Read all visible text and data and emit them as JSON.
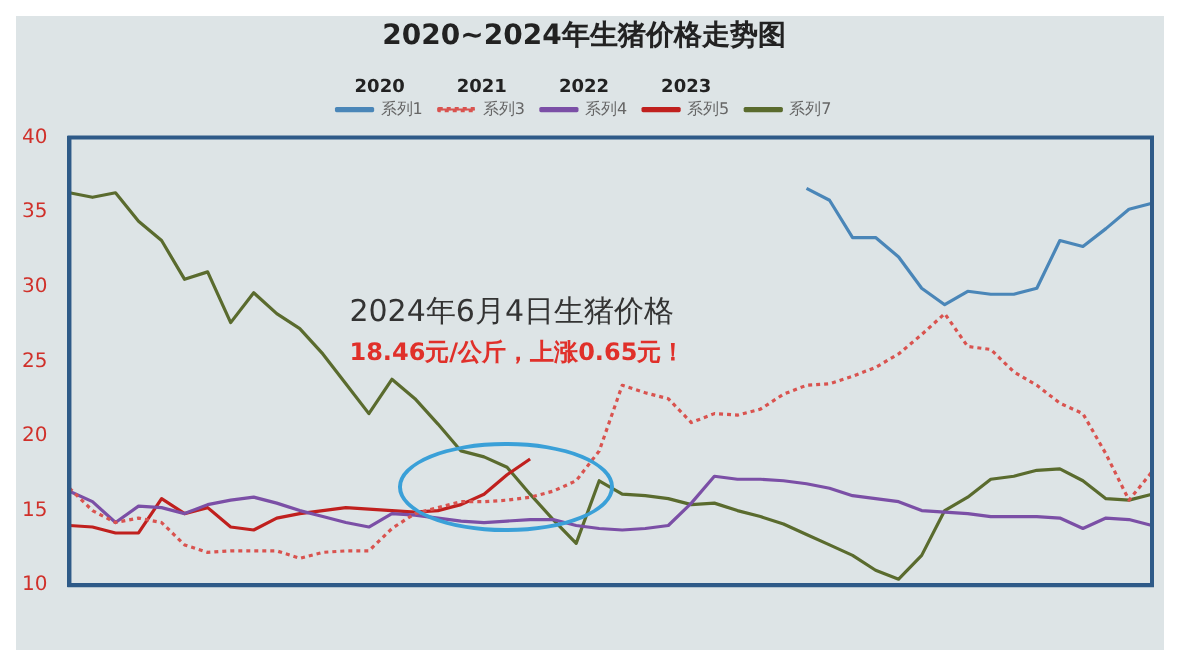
{
  "chart_data": {
    "type": "line",
    "title": "2020~2024年生猪价格走势图",
    "categories": [
      null,
      null,
      null,
      null,
      null,
      null,
      null,
      null,
      null,
      null,
      null,
      null,
      null,
      null,
      null,
      null,
      null,
      null,
      null,
      null,
      null,
      null,
      null,
      null,
      null,
      null,
      null,
      null,
      null,
      null,
      null,
      null,
      null,
      null,
      null,
      null,
      null,
      null,
      null,
      null,
      null,
      null,
      null,
      null,
      null,
      null,
      null,
      null
    ],
    "series": [
      {
        "name": "系列1",
        "color": "#4a86b8",
        "values": [
          null,
          null,
          null,
          null,
          null,
          null,
          null,
          null,
          null,
          null,
          null,
          null,
          null,
          null,
          null,
          null,
          null,
          null,
          null,
          null,
          null,
          null,
          null,
          null,
          null,
          null,
          null,
          null,
          null,
          null,
          null,
          null,
          36.6,
          35.8,
          33.3,
          33.3,
          32.0,
          29.9,
          28.8,
          29.7,
          29.5,
          29.5,
          29.9,
          33.1,
          32.7,
          33.9,
          35.2,
          35.6
        ]
      },
      {
        "name": "系列3",
        "color": "#d9534f",
        "line_style": "dotted",
        "values": [
          16.5,
          15.0,
          14.2,
          14.5,
          14.2,
          12.7,
          12.2,
          12.3,
          12.3,
          12.3,
          11.8,
          12.2,
          12.3,
          12.3,
          13.8,
          14.8,
          15.2,
          15.6,
          15.6,
          15.7,
          15.9,
          16.3,
          17.0,
          19.0,
          23.4,
          22.9,
          22.5,
          20.9,
          21.5,
          21.4,
          21.8,
          22.8,
          23.4,
          23.5,
          24.0,
          24.6,
          25.5,
          26.8,
          28.2,
          26.0,
          25.8,
          24.3,
          23.4,
          22.2,
          21.5,
          18.8,
          15.7,
          17.6
        ]
      },
      {
        "name": "系列4",
        "color": "#7b4fa6",
        "values": [
          16.3,
          15.6,
          14.2,
          15.3,
          15.2,
          14.8,
          15.4,
          15.7,
          15.9,
          15.5,
          15.0,
          14.6,
          14.2,
          13.9,
          14.8,
          14.7,
          14.5,
          14.3,
          14.2,
          14.3,
          14.4,
          14.4,
          14.0,
          13.8,
          13.7,
          13.8,
          14.0,
          15.5,
          17.3,
          17.1,
          17.1,
          17.0,
          16.8,
          16.5,
          16.0,
          15.8,
          15.6,
          15.0,
          14.9,
          14.8,
          14.6,
          14.6,
          14.6,
          14.5,
          13.8,
          14.5,
          14.4,
          14.0
        ]
      },
      {
        "name": "系列5",
        "color": "#c0201e",
        "values": [
          14.0,
          13.9,
          13.5,
          13.5,
          15.8,
          14.8,
          15.2,
          13.9,
          13.7,
          14.5,
          14.8,
          15.0,
          15.2,
          15.1,
          15.0,
          14.9,
          15.0,
          15.4,
          16.1,
          17.4,
          18.46,
          null,
          null,
          null,
          null,
          null,
          null,
          null,
          null,
          null,
          null,
          null,
          null,
          null,
          null,
          null,
          null,
          null,
          null,
          null,
          null,
          null,
          null,
          null,
          null,
          null,
          null,
          null
        ]
      },
      {
        "name": "系列7",
        "color": "#5a6b2e",
        "values": [
          36.3,
          36.0,
          36.3,
          34.4,
          33.1,
          30.5,
          31.0,
          27.6,
          29.6,
          28.2,
          27.2,
          25.5,
          23.5,
          21.5,
          23.8,
          22.5,
          20.8,
          19.0,
          18.6,
          17.9,
          16.1,
          14.4,
          12.8,
          17.0,
          16.1,
          16.0,
          15.8,
          15.4,
          15.5,
          15.0,
          14.6,
          14.1,
          13.4,
          12.7,
          12.0,
          11.0,
          10.4,
          12.0,
          15.0,
          15.9,
          17.1,
          17.3,
          17.7,
          17.8,
          17.0,
          15.8,
          15.7,
          16.1
        ]
      }
    ],
    "ylim": [
      10,
      40
    ],
    "yticks": [
      10,
      15,
      20,
      25,
      30,
      35,
      40
    ],
    "grid": false,
    "legend": "top",
    "marker": "none",
    "annotations": [
      "2020",
      "2021",
      "2022",
      "2023",
      "2024年6月4日生猪价格",
      "18.46元/公斤，上涨0.65元！"
    ]
  }
}
